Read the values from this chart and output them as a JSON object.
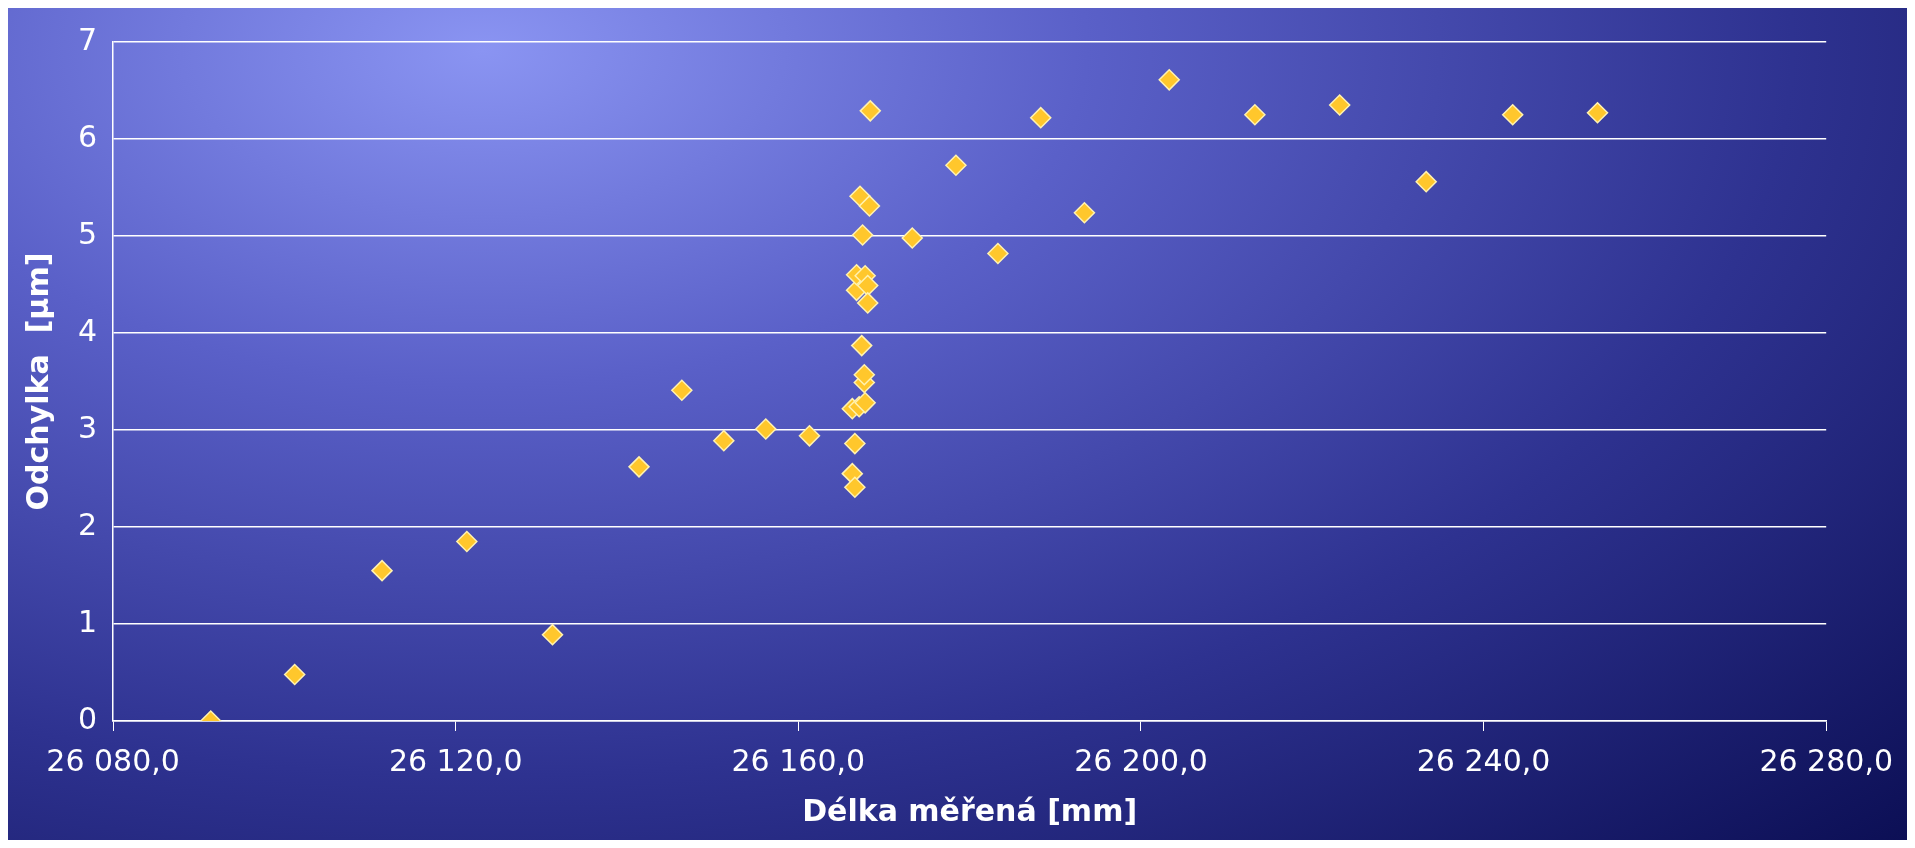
{
  "chart_data": {
    "type": "scatter",
    "xlabel": "Délka měřená [mm]",
    "ylabel": "Odchylka  [µm]",
    "x": [
      26091.4,
      26101.2,
      26111.4,
      26121.3,
      26131.3,
      26141.4,
      26146.4,
      26151.3,
      26156.2,
      26161.3,
      26166.3,
      26166.6,
      26166.6,
      26166.3,
      26167.1,
      26167.8,
      26167.7,
      26167.7,
      26167.4,
      26166.8,
      26166.8,
      26167.8,
      26168.1,
      26168.1,
      26167.5,
      26167.2,
      26168.3,
      26168.4,
      26173.3,
      26178.4,
      26183.3,
      26188.3,
      26193.4,
      26203.3,
      26213.3,
      26223.2,
      26233.3,
      26243.4,
      26253.3
    ],
    "values": [
      0,
      0.48,
      1.55,
      1.85,
      0.89,
      2.62,
      3.41,
      2.89,
      3.01,
      2.94,
      2.55,
      2.41,
      2.86,
      3.22,
      3.24,
      3.28,
      3.49,
      3.57,
      3.87,
      4.44,
      4.6,
      4.59,
      4.49,
      4.31,
      5.01,
      5.41,
      5.31,
      6.29,
      4.98,
      5.73,
      4.82,
      6.22,
      5.24,
      6.61,
      6.25,
      6.35,
      5.56,
      6.25,
      6.27
    ],
    "color": "#ffc72c",
    "marker": "diamond",
    "grid": "y",
    "xlim": [
      26080,
      26280
    ],
    "xticks": [
      {
        "value": 26080,
        "label": "26 080,0"
      },
      {
        "value": 26120,
        "label": "26 120,0"
      },
      {
        "value": 26160,
        "label": "26 160,0"
      },
      {
        "value": 26200,
        "label": "26 200,0"
      },
      {
        "value": 26240,
        "label": "26 240,0"
      },
      {
        "value": 26280,
        "label": "26 280,0"
      }
    ],
    "ylim": [
      0,
      7
    ],
    "yticks": [
      0,
      1,
      2,
      3,
      4,
      5,
      6,
      7
    ]
  }
}
